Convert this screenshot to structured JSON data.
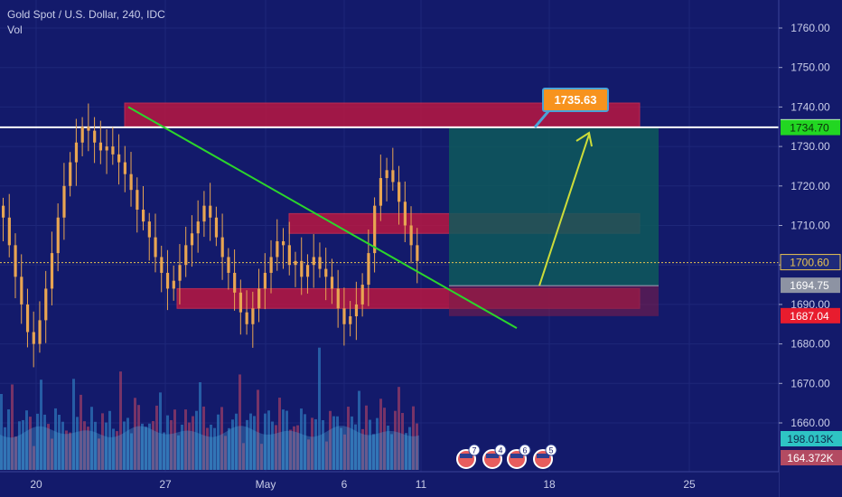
{
  "header": {
    "symbol_line": "Gold Spot / U.S. Dollar, 240, IDC",
    "volume_label": "Vol"
  },
  "colors": {
    "background": "#131a6b",
    "candle_up": "#e8a552",
    "candle_down": "#e8a552",
    "volume_up": "#2d74b8",
    "volume_down": "#9a3c66",
    "zone_fill": "#c4173f",
    "trendline": "#2bd62b",
    "projection_arrow": "#cddc39",
    "target_box": "#0e5a5a",
    "callout": "#f7931e",
    "horizontal_line": "#ffffff"
  },
  "chart_data": {
    "type": "candlestick",
    "title": "Gold Spot / U.S. Dollar, 240, IDC",
    "y_axis": {
      "ticks": [
        1760,
        1750,
        1740,
        1730,
        1720,
        1710,
        1700,
        1690,
        1680,
        1670,
        1660
      ],
      "tick_labels": [
        "1760.00",
        "1750.00",
        "1740.00",
        "1730.00",
        "1720.00",
        "1710.00",
        "1700.00",
        "1690.00",
        "1680.00",
        "1670.00",
        "1660.00"
      ],
      "range": [
        1653,
        1772
      ]
    },
    "x_axis": {
      "tick_labels": [
        "20",
        "27",
        "May",
        "6",
        "11",
        "18",
        "25"
      ]
    },
    "price_labels": [
      {
        "text": "1734.86",
        "value": 1734.86,
        "style": "white"
      },
      {
        "text": "1734.70",
        "value": 1734.7,
        "style": "green"
      },
      {
        "text": "1700.60",
        "value": 1700.6,
        "style": "yellow"
      },
      {
        "text": "1694.75",
        "value": 1694.75,
        "style": "gray"
      },
      {
        "text": "1687.04",
        "value": 1687.04,
        "style": "red"
      }
    ],
    "volume_labels": [
      {
        "text": "198.013K",
        "style": "teal"
      },
      {
        "text": "164.372K",
        "style": "maroon"
      }
    ],
    "annotations": {
      "callout": "1735.63",
      "horizontal_line": 1734.86,
      "last_price": 1700.6,
      "zones": [
        {
          "from": 1735,
          "to": 1741
        },
        {
          "from": 1708,
          "to": 1713
        },
        {
          "from": 1689,
          "to": 1694
        }
      ],
      "long_position": {
        "entry": 1694.75,
        "target": 1734.7,
        "stop": 1687.04
      }
    },
    "candle_closes": [
      1712,
      1705,
      1697,
      1690,
      1683,
      1680,
      1686,
      1694,
      1703,
      1712,
      1720,
      1726,
      1731,
      1735,
      1734,
      1731,
      1729,
      1730,
      1728,
      1726,
      1723,
      1719,
      1714,
      1711,
      1707,
      1702,
      1698,
      1694,
      1696,
      1700,
      1705,
      1708,
      1711,
      1715,
      1712,
      1707,
      1702,
      1698,
      1693,
      1688,
      1685,
      1689,
      1694,
      1698,
      1702,
      1706,
      1705,
      1700,
      1701,
      1697,
      1700,
      1702,
      1699,
      1697,
      1694,
      1689,
      1685,
      1687,
      1690,
      1695,
      1703,
      1715,
      1722,
      1724,
      1721,
      1716,
      1710,
      1705,
      1701
    ],
    "markers": [
      "7",
      "4",
      "6",
      "5"
    ]
  }
}
